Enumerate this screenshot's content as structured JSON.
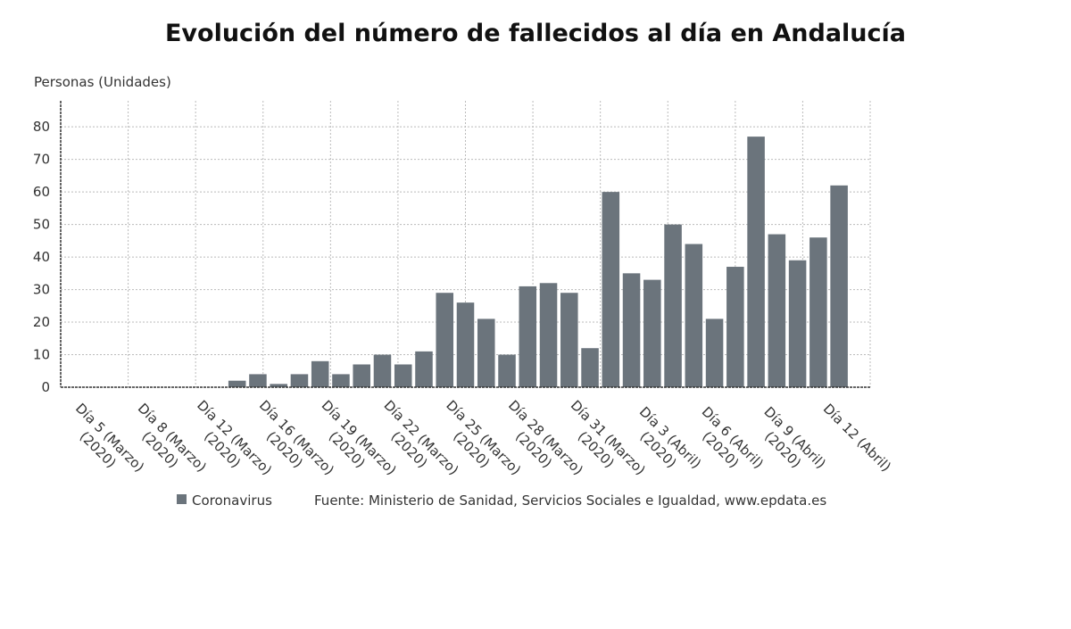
{
  "chart_data": {
    "type": "bar",
    "title": "Evolución del número de fallecidos al día en Andalucía",
    "y_label": "Personas (Unidades)",
    "categories": [
      "Día 5 (Marzo)\n(2020)",
      null,
      null,
      "Día 8 (Marzo)\n(2020)",
      null,
      null,
      "Día 12 (Marzo)\n(2020)",
      null,
      null,
      "Día 16 (Marzo)\n(2020)",
      null,
      null,
      "Día 19 (Marzo)\n(2020)",
      null,
      null,
      "Día 22 (Marzo)\n(2020)",
      null,
      null,
      "Día 25 (Marzo)\n(2020)",
      null,
      null,
      "Día 28 (Marzo)\n(2020)",
      null,
      null,
      "Día 31 (Marzo)\n(2020)",
      null,
      null,
      "Día 3 (Abril)\n(2020)",
      null,
      null,
      "Día 6 (Abril)\n(2020)",
      null,
      null,
      "Día 9 (Abril)\n(2020)",
      null,
      null,
      "Día 12 (Abril)",
      null
    ],
    "series": [
      {
        "name": "Coronavirus",
        "color": "#6b747c",
        "values": [
          0,
          0,
          0,
          0,
          0,
          0,
          0,
          0,
          2,
          4,
          1,
          4,
          8,
          4,
          7,
          10,
          7,
          11,
          29,
          26,
          21,
          10,
          31,
          32,
          29,
          12,
          60,
          35,
          33,
          50,
          44,
          21,
          37,
          77,
          47,
          39,
          46,
          62
        ]
      }
    ],
    "ylim": [
      0,
      88
    ],
    "yticks": [
      0,
      10,
      20,
      30,
      40,
      50,
      60,
      70,
      80
    ],
    "grid": true,
    "source": "Fuente: Ministerio de Sanidad, Servicios Sociales e Igualdad, www.epdata.es"
  }
}
